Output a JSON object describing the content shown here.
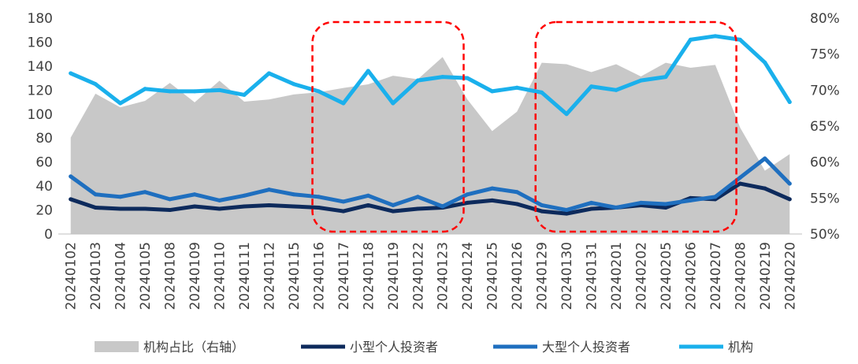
{
  "chart_data": {
    "type": "line",
    "categories": [
      "20240102",
      "20240103",
      "20240104",
      "20240105",
      "20240108",
      "20240109",
      "20240110",
      "20240111",
      "20240112",
      "20240115",
      "20240116",
      "20240117",
      "20240118",
      "20240119",
      "20240122",
      "20240123",
      "20240124",
      "20240125",
      "20240126",
      "20240129",
      "20240130",
      "20240131",
      "20240201",
      "20240202",
      "20240205",
      "20240206",
      "20240207",
      "20240208",
      "20240219",
      "20240220"
    ],
    "y_left": {
      "min": 0,
      "max": 180,
      "step": 20,
      "ticks": [
        "0",
        "20",
        "40",
        "60",
        "80",
        "100",
        "120",
        "140",
        "160",
        "180"
      ]
    },
    "y_right": {
      "min": 50,
      "max": 80,
      "step": 5,
      "ticks": [
        "50%",
        "55%",
        "60%",
        "65%",
        "70%",
        "75%",
        "80%"
      ]
    },
    "series": [
      {
        "name": "机构占比（右轴）",
        "kind": "area",
        "axis": "right",
        "color": "#c8c8c8",
        "values": [
          63.4,
          69.5,
          67.6,
          68.5,
          71.0,
          68.3,
          71.3,
          68.4,
          68.7,
          69.4,
          69.7,
          70.3,
          70.8,
          72.0,
          71.5,
          74.6,
          68.7,
          64.3,
          67.0,
          73.8,
          73.6,
          72.5,
          73.6,
          71.9,
          73.8,
          73.1,
          73.5,
          64.8,
          58.8,
          61.1
        ]
      },
      {
        "name": "小型个人投资者",
        "kind": "line",
        "axis": "left",
        "color": "#0d2a5c",
        "values": [
          29,
          22,
          21,
          21,
          20,
          23,
          21,
          23,
          24,
          23,
          22,
          19,
          24,
          19,
          21,
          22,
          26,
          28,
          25,
          19,
          17,
          21,
          22,
          24,
          22,
          30,
          29,
          42,
          38,
          29
        ]
      },
      {
        "name": "大型个人投资者",
        "kind": "line",
        "axis": "left",
        "color": "#1f6fbf",
        "values": [
          48,
          33,
          31,
          35,
          29,
          33,
          28,
          32,
          37,
          33,
          31,
          27,
          32,
          24,
          31,
          23,
          33,
          38,
          35,
          24,
          20,
          26,
          22,
          26,
          25,
          28,
          31,
          47,
          63,
          42
        ]
      },
      {
        "name": "机构",
        "kind": "line",
        "axis": "left",
        "color": "#1ab0ec",
        "values": [
          134,
          125,
          109,
          121,
          119,
          119,
          120,
          116,
          134,
          125,
          119,
          109,
          136,
          109,
          128,
          131,
          130,
          119,
          122,
          118,
          100,
          123,
          120,
          128,
          131,
          162,
          165,
          162,
          143,
          110
        ]
      }
    ],
    "grid": false,
    "legend": "bottom",
    "annotations": [
      {
        "shape": "dashed-rounded-rect",
        "color": "#ff0000",
        "from": "20240116",
        "to": "20240123"
      },
      {
        "shape": "dashed-rounded-rect",
        "color": "#ff0000",
        "from": "20240129",
        "to": "20240207"
      }
    ]
  }
}
